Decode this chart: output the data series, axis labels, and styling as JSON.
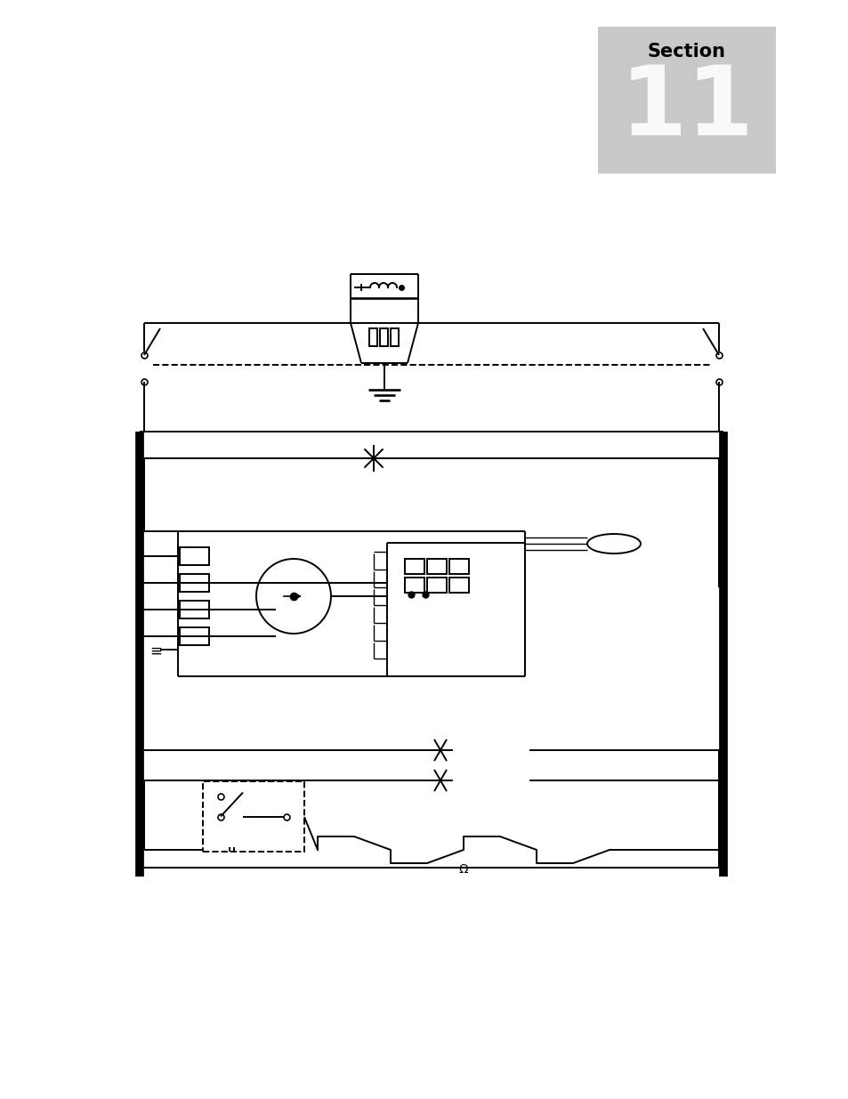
{
  "bg_color": "#ffffff",
  "section_box_color": "#c8c8c8",
  "line_color": "#000000",
  "fig_width": 9.54,
  "fig_height": 12.35,
  "lw": 1.4,
  "lw_thick": 7.0
}
